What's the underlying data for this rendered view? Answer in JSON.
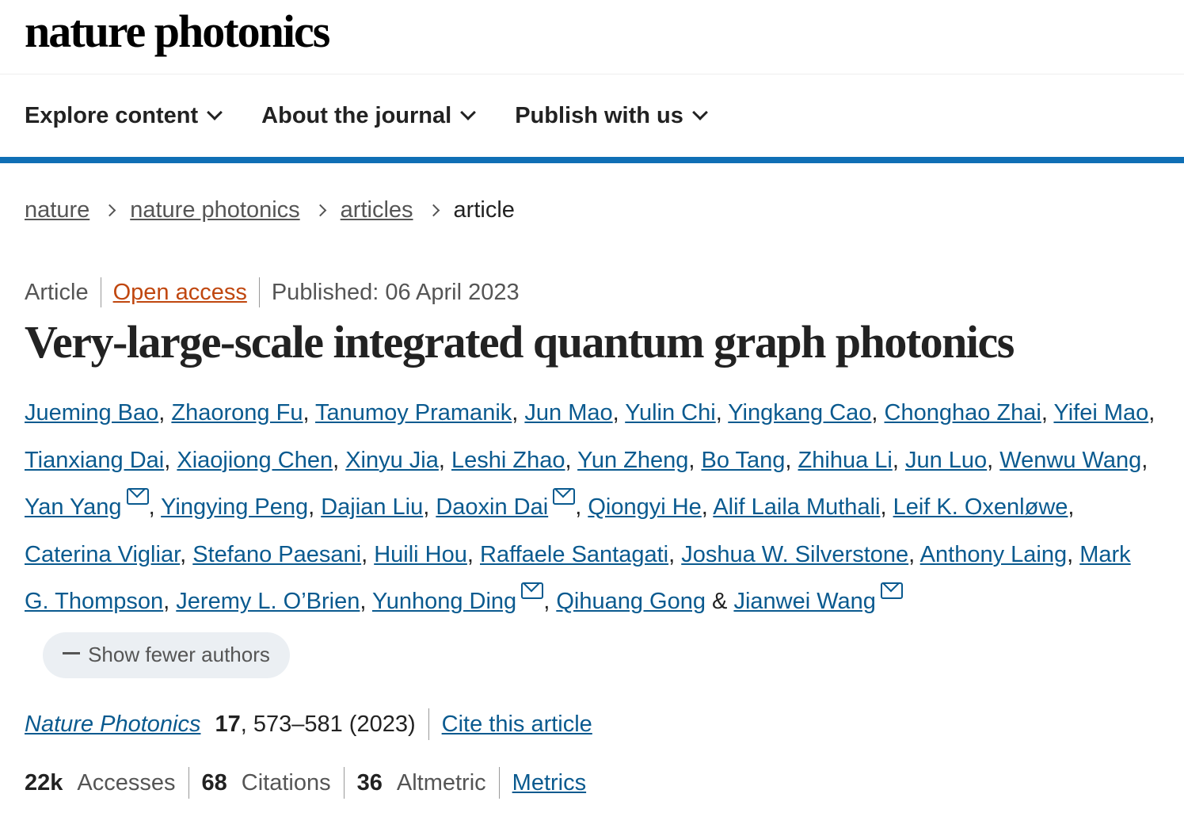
{
  "logo": "nature photonics",
  "nav": [
    "Explore content",
    "About the journal",
    "Publish with us"
  ],
  "breadcrumb": [
    "nature",
    "nature photonics",
    "articles",
    "article"
  ],
  "meta": {
    "type": "Article",
    "access": "Open access",
    "published": "Published: 06 April 2023"
  },
  "title": "Very-large-scale integrated quantum graph photonics",
  "authors": [
    {
      "name": "Jueming Bao"
    },
    {
      "name": "Zhaorong Fu"
    },
    {
      "name": "Tanumoy Pramanik"
    },
    {
      "name": "Jun Mao"
    },
    {
      "name": "Yulin Chi"
    },
    {
      "name": "Yingkang Cao"
    },
    {
      "name": "Chonghao Zhai"
    },
    {
      "name": "Yifei Mao"
    },
    {
      "name": "Tianxiang Dai"
    },
    {
      "name": "Xiaojiong Chen"
    },
    {
      "name": "Xinyu Jia"
    },
    {
      "name": "Leshi Zhao"
    },
    {
      "name": "Yun Zheng"
    },
    {
      "name": "Bo Tang"
    },
    {
      "name": "Zhihua Li"
    },
    {
      "name": "Jun Luo"
    },
    {
      "name": "Wenwu Wang"
    },
    {
      "name": "Yan Yang",
      "email": true
    },
    {
      "name": "Yingying Peng"
    },
    {
      "name": "Dajian Liu"
    },
    {
      "name": "Daoxin Dai",
      "email": true
    },
    {
      "name": "Qiongyi He"
    },
    {
      "name": "Alif Laila Muthali"
    },
    {
      "name": "Leif K. Oxenløwe"
    },
    {
      "name": "Caterina Vigliar"
    },
    {
      "name": "Stefano Paesani"
    },
    {
      "name": "Huili Hou"
    },
    {
      "name": "Raffaele Santagati"
    },
    {
      "name": "Joshua W. Silverstone"
    },
    {
      "name": "Anthony Laing"
    },
    {
      "name": "Mark G. Thompson"
    },
    {
      "name": "Jeremy L. O’Brien"
    },
    {
      "name": "Yunhong Ding",
      "email": true
    },
    {
      "name": "Qihuang Gong"
    },
    {
      "name": "Jianwei Wang",
      "email": true
    }
  ],
  "separators": {
    "comma": ", ",
    "and": " & "
  },
  "show_fewer": "Show fewer authors",
  "citation": {
    "journal": "Nature Photonics",
    "volume": "17",
    "rest": ", 573–581 (2023)",
    "cite_link": "Cite this article"
  },
  "metrics": {
    "accesses_value": "22k",
    "accesses_label": "Accesses",
    "citations_value": "68",
    "citations_label": "Citations",
    "altmetric_value": "36",
    "altmetric_label": "Altmetric",
    "link": "Metrics"
  },
  "colors": {
    "accent": "#0f6fb5",
    "link": "#0a5a8f",
    "open_access": "#c0470f"
  }
}
